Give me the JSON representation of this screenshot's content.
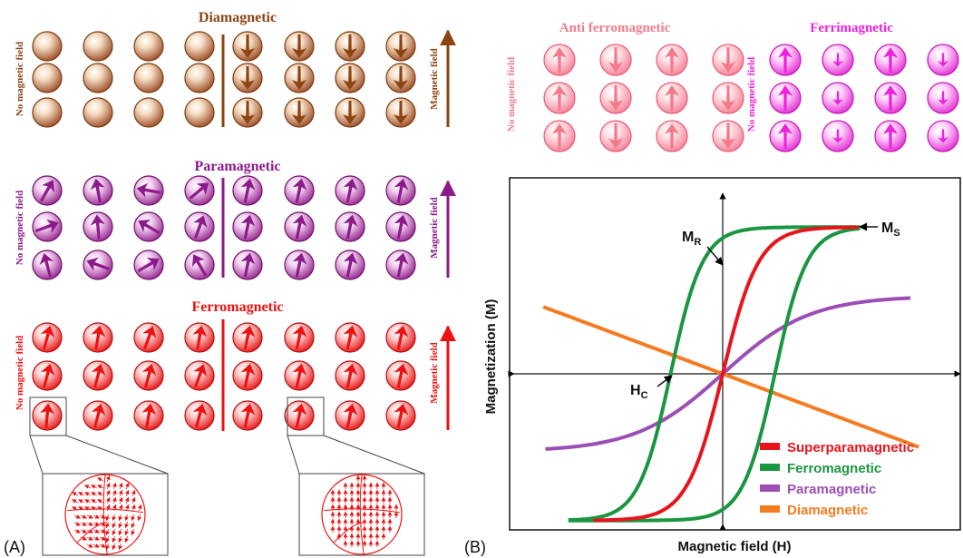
{
  "panel_labels": {
    "a": "(A)",
    "b": "(B)"
  },
  "panel_a": {
    "no_field_label": "No magnetic field",
    "field_label": "Magnetic field",
    "rows": [
      {
        "title": "Diamagnetic",
        "color": "#8b4513",
        "light": "#f5dcc2",
        "dark": "#a0522d"
      },
      {
        "title": "Paramagnetic",
        "color": "#8b1a8b",
        "light": "#f3d0f0",
        "dark": "#9b2d94"
      },
      {
        "title": "Ferromagnetic",
        "color": "#ee1111",
        "light": "#ffd0d0",
        "dark": "#e81c1c"
      }
    ]
  },
  "panel_b_top": {
    "no_field_label": "No magnetic field",
    "anti": {
      "title": "Anti ferromagnetic",
      "color": "#f47a8a"
    },
    "ferri": {
      "title": "Ferrimagnetic",
      "color": "#ee22dd"
    }
  },
  "chart_data": {
    "type": "line",
    "xlabel": "Magnetic field (H)",
    "ylabel": "Magnetization (M)",
    "annotations": [
      {
        "label": "M",
        "sub": "R"
      },
      {
        "label": "M",
        "sub": "S"
      },
      {
        "label": "H",
        "sub": "C"
      }
    ],
    "legend_position": "bottom-right",
    "series": [
      {
        "name": "Superparamagnetic",
        "color": "#e8141c"
      },
      {
        "name": "Ferromagnetic",
        "color": "#1a9641"
      },
      {
        "name": "Paramagnetic",
        "color": "#9b4fb5"
      },
      {
        "name": "Diamagnetic",
        "color": "#f47b20"
      }
    ]
  }
}
